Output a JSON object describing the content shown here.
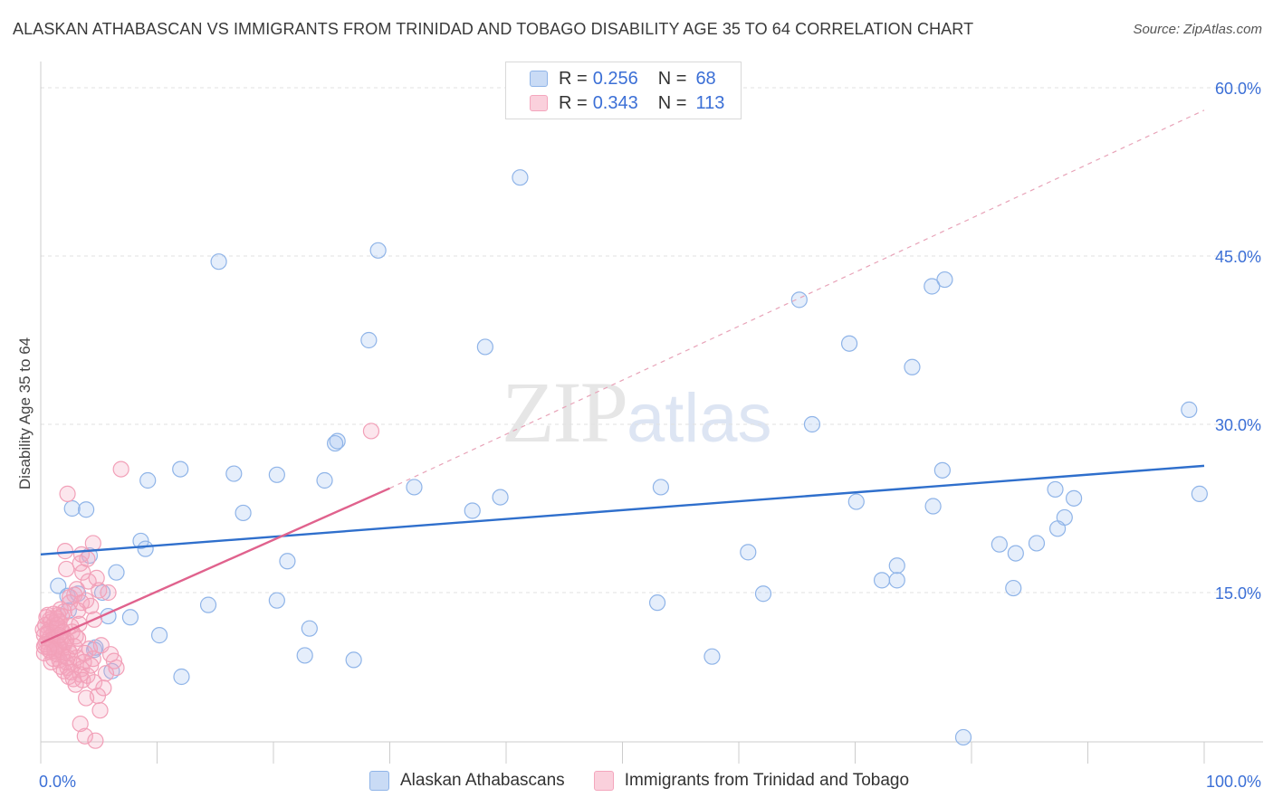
{
  "title": "ALASKAN ATHABASCAN VS IMMIGRANTS FROM TRINIDAD AND TOBAGO DISABILITY AGE 35 TO 64 CORRELATION CHART",
  "source": "Source: ZipAtlas.com",
  "watermark": {
    "zip": "ZIP",
    "atlas": "atlas"
  },
  "legend_top": {
    "rows": [
      {
        "r_label": "R =",
        "r_value": "0.256",
        "n_label": "N =",
        "n_value": "68"
      },
      {
        "r_label": "R =",
        "r_value": "0.343",
        "n_label": "N =",
        "n_value": "113"
      }
    ]
  },
  "chart_data": {
    "type": "scatter",
    "title": "ALASKAN ATHABASCAN VS IMMIGRANTS FROM TRINIDAD AND TOBAGO DISABILITY AGE 35 TO 64 CORRELATION CHART",
    "xlabel": "",
    "ylabel": "Disability Age 35 to 64",
    "xlim": [
      0,
      100
    ],
    "ylim": [
      0,
      61
    ],
    "x_tick_labels": [
      {
        "value": 0,
        "label": "0.0%"
      },
      {
        "value": 100,
        "label": "100.0%"
      }
    ],
    "y_tick_labels": [
      {
        "value": 15,
        "label": "15.0%"
      },
      {
        "value": 30,
        "label": "30.0%"
      },
      {
        "value": 45,
        "label": "45.0%"
      },
      {
        "value": 60,
        "label": "60.0%"
      }
    ],
    "series": [
      {
        "name": "Alaskan Athabascans",
        "color": "#8fb4e8",
        "line_color": "#2f6fcc",
        "trend": {
          "x": [
            0,
            100
          ],
          "y": [
            18.4,
            26.3
          ],
          "dashed_from": null
        },
        "points": [
          [
            41.2,
            52.0
          ],
          [
            15.3,
            44.5
          ],
          [
            29.0,
            45.5
          ],
          [
            77.7,
            42.9
          ],
          [
            76.6,
            42.3
          ],
          [
            65.2,
            41.1
          ],
          [
            28.2,
            37.5
          ],
          [
            38.2,
            36.9
          ],
          [
            69.5,
            37.2
          ],
          [
            74.9,
            35.1
          ],
          [
            98.7,
            31.3
          ],
          [
            66.3,
            30.0
          ],
          [
            25.5,
            28.5
          ],
          [
            25.3,
            28.3
          ],
          [
            12.0,
            26.0
          ],
          [
            16.6,
            25.6
          ],
          [
            9.2,
            25.0
          ],
          [
            24.4,
            25.0
          ],
          [
            77.5,
            25.9
          ],
          [
            32.1,
            24.4
          ],
          [
            53.3,
            24.4
          ],
          [
            39.5,
            23.5
          ],
          [
            87.2,
            24.2
          ],
          [
            99.6,
            23.8
          ],
          [
            2.7,
            22.5
          ],
          [
            3.9,
            22.4
          ],
          [
            17.4,
            22.1
          ],
          [
            37.1,
            22.3
          ],
          [
            70.1,
            23.1
          ],
          [
            76.7,
            22.7
          ],
          [
            88.8,
            23.4
          ],
          [
            88.0,
            21.7
          ],
          [
            87.4,
            20.7
          ],
          [
            8.6,
            19.6
          ],
          [
            9.0,
            18.9
          ],
          [
            4.2,
            18.3
          ],
          [
            21.2,
            17.8
          ],
          [
            60.8,
            18.6
          ],
          [
            82.4,
            19.3
          ],
          [
            83.8,
            18.5
          ],
          [
            85.6,
            19.4
          ],
          [
            6.5,
            16.8
          ],
          [
            73.6,
            17.4
          ],
          [
            72.3,
            16.1
          ],
          [
            73.6,
            16.1
          ],
          [
            1.5,
            15.6
          ],
          [
            2.3,
            14.7
          ],
          [
            3.2,
            14.9
          ],
          [
            5.3,
            15.0
          ],
          [
            20.3,
            14.3
          ],
          [
            62.1,
            14.9
          ],
          [
            53.0,
            14.1
          ],
          [
            83.6,
            15.4
          ],
          [
            14.4,
            13.9
          ],
          [
            2.4,
            13.4
          ],
          [
            5.8,
            12.9
          ],
          [
            7.7,
            12.8
          ],
          [
            23.1,
            11.8
          ],
          [
            10.2,
            11.2
          ],
          [
            4.6,
            9.9
          ],
          [
            22.7,
            9.4
          ],
          [
            26.9,
            9.0
          ],
          [
            57.7,
            9.3
          ],
          [
            6.1,
            8.0
          ],
          [
            12.1,
            7.5
          ],
          [
            79.3,
            2.1
          ],
          [
            4.7,
            10.1
          ],
          [
            20.3,
            25.5
          ]
        ]
      },
      {
        "name": "Immigrants from Trinidad and Tobago",
        "color": "#f4a6bd",
        "line_color": "#e0628d",
        "trend": {
          "x": [
            0,
            30
          ],
          "y": [
            10.5,
            24.3
          ],
          "dashed_to": [
            100,
            58.0
          ]
        },
        "points": [
          [
            28.4,
            29.4
          ],
          [
            6.9,
            26.0
          ],
          [
            2.3,
            23.8
          ],
          [
            4.5,
            19.4
          ],
          [
            2.1,
            18.7
          ],
          [
            3.5,
            18.4
          ],
          [
            3.4,
            17.6
          ],
          [
            2.2,
            17.1
          ],
          [
            3.6,
            16.8
          ],
          [
            4.1,
            16.0
          ],
          [
            5.0,
            15.2
          ],
          [
            3.1,
            15.3
          ],
          [
            2.9,
            14.8
          ],
          [
            2.5,
            14.6
          ],
          [
            3.5,
            14.1
          ],
          [
            4.3,
            13.8
          ],
          [
            1.7,
            13.5
          ],
          [
            2.0,
            13.3
          ],
          [
            1.5,
            13.0
          ],
          [
            1.8,
            12.9
          ],
          [
            0.6,
            13.0
          ],
          [
            0.8,
            12.6
          ],
          [
            1.2,
            12.3
          ],
          [
            1.6,
            12.4
          ],
          [
            0.4,
            12.1
          ],
          [
            0.9,
            11.9
          ],
          [
            1.3,
            11.8
          ],
          [
            1.7,
            11.8
          ],
          [
            0.6,
            11.5
          ],
          [
            1.1,
            11.4
          ],
          [
            0.3,
            11.2
          ],
          [
            0.8,
            11.0
          ],
          [
            1.3,
            10.9
          ],
          [
            1.7,
            11.0
          ],
          [
            2.2,
            10.8
          ],
          [
            3.2,
            10.9
          ],
          [
            0.5,
            10.6
          ],
          [
            1.0,
            10.5
          ],
          [
            1.5,
            10.4
          ],
          [
            2.0,
            10.3
          ],
          [
            0.3,
            10.2
          ],
          [
            0.7,
            10.1
          ],
          [
            1.2,
            10.0
          ],
          [
            1.8,
            9.9
          ],
          [
            2.4,
            9.8
          ],
          [
            0.9,
            9.7
          ],
          [
            1.4,
            9.5
          ],
          [
            1.9,
            9.4
          ],
          [
            2.5,
            9.6
          ],
          [
            3.1,
            9.2
          ],
          [
            1.1,
            9.1
          ],
          [
            1.6,
            9.0
          ],
          [
            2.2,
            8.8
          ],
          [
            2.8,
            8.6
          ],
          [
            1.7,
            8.4
          ],
          [
            2.3,
            8.3
          ],
          [
            3.5,
            8.2
          ],
          [
            2.0,
            8.0
          ],
          [
            2.6,
            7.9
          ],
          [
            3.4,
            7.7
          ],
          [
            4.0,
            7.6
          ],
          [
            2.8,
            7.3
          ],
          [
            3.6,
            7.2
          ],
          [
            4.6,
            7.0
          ],
          [
            5.4,
            6.5
          ],
          [
            3.0,
            6.8
          ],
          [
            4.9,
            5.8
          ],
          [
            3.9,
            5.6
          ],
          [
            5.1,
            4.5
          ],
          [
            3.4,
            3.3
          ],
          [
            3.8,
            2.2
          ],
          [
            4.7,
            1.8
          ],
          [
            0.5,
            12.8
          ],
          [
            0.9,
            12.4
          ],
          [
            1.4,
            12.7
          ],
          [
            0.2,
            11.7
          ],
          [
            0.6,
            11.3
          ],
          [
            1.0,
            10.8
          ],
          [
            1.5,
            10.2
          ],
          [
            0.4,
            10.4
          ],
          [
            2.7,
            11.5
          ],
          [
            3.3,
            12.2
          ],
          [
            4.2,
            10.0
          ],
          [
            4.5,
            9.1
          ],
          [
            6.0,
            9.5
          ],
          [
            6.5,
            8.3
          ],
          [
            5.8,
            15.0
          ],
          [
            4.0,
            18.0
          ],
          [
            4.8,
            16.3
          ],
          [
            3.9,
            14.3
          ],
          [
            2.6,
            12.0
          ],
          [
            3.0,
            11.1
          ],
          [
            1.2,
            9.8
          ],
          [
            2.3,
            9.2
          ],
          [
            3.7,
            8.8
          ],
          [
            4.3,
            8.5
          ],
          [
            5.6,
            7.8
          ],
          [
            2.1,
            10.6
          ],
          [
            1.4,
            12.1
          ],
          [
            0.7,
            9.9
          ],
          [
            1.9,
            11.5
          ],
          [
            2.9,
            10.2
          ],
          [
            3.8,
            9.6
          ],
          [
            5.2,
            10.3
          ],
          [
            6.3,
            8.9
          ],
          [
            1.1,
            13.1
          ],
          [
            0.3,
            9.6
          ],
          [
            2.5,
            14.1
          ],
          [
            4.6,
            12.6
          ],
          [
            3.2,
            13.4
          ],
          [
            1.6,
            11.2
          ],
          [
            0.9,
            8.8
          ],
          [
            2.4,
            7.5
          ]
        ]
      }
    ],
    "stats": [
      {
        "series": "Alaskan Athabascans",
        "R": 0.256,
        "N": 68
      },
      {
        "series": "Immigrants from Trinidad and Tobago",
        "R": 0.343,
        "N": 113
      }
    ]
  }
}
